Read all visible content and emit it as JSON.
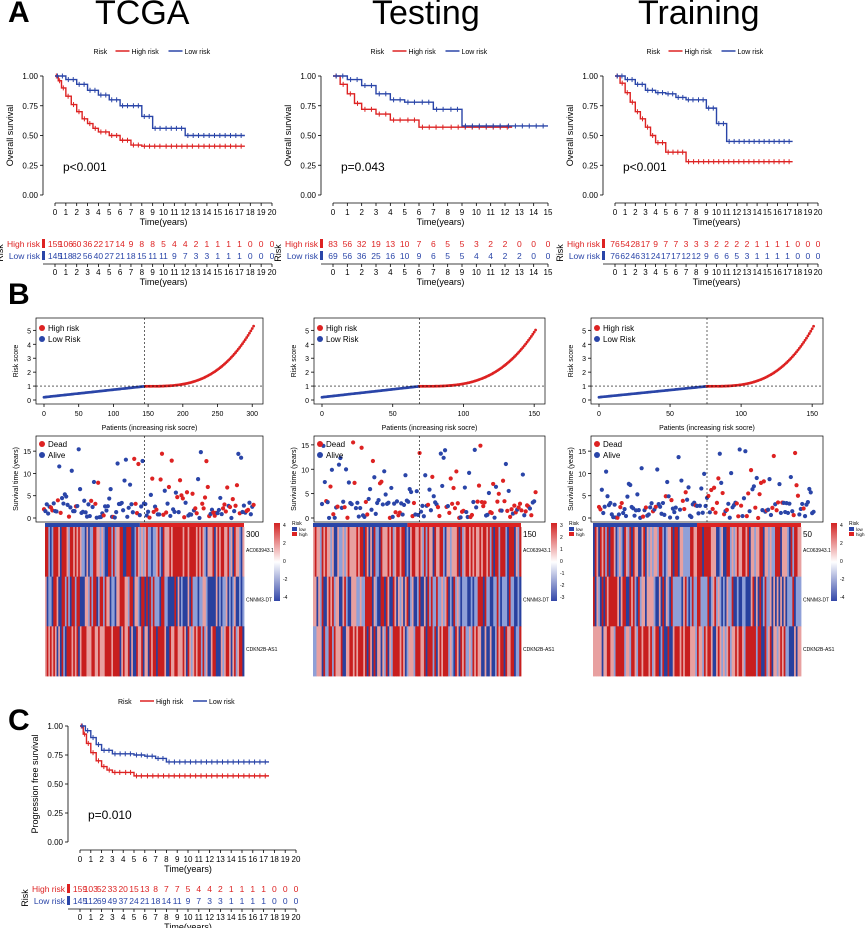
{
  "panel_letters": [
    "A",
    "B",
    "C"
  ],
  "cohorts": [
    "TCGA",
    "Testing",
    "Training"
  ],
  "colors": {
    "high": "#dd2222",
    "low": "#2a45a8",
    "dead": "#dd2222",
    "alive": "#2a45a8",
    "hm_hi": "#d22222",
    "hm_lo": "#3347a8"
  },
  "legend": {
    "risk_label": "Risk",
    "high": "High risk",
    "low": "Low risk"
  },
  "score_legend": {
    "high": "High risk",
    "low": "Low Risk"
  },
  "status_legend": {
    "dead": "Dead",
    "alive": "Alive"
  },
  "axis": {
    "time_label": "Time(years)",
    "os_label": "Overall survival",
    "pfs_label": "Progression free survival",
    "risk_table_label": "Risk",
    "risk_score_label": "Risk score",
    "survival_time_label": "Survival time (years)",
    "patients_label": "Patients (increasing risk socre)"
  },
  "genes": [
    "AC063943.1",
    "CNNM3-DT",
    "CDKN2B-AS1"
  ],
  "heat_legend": {
    "title": "Risk",
    "high": "high",
    "low": "low"
  },
  "chart_data": [
    {
      "id": "A-TCGA",
      "type": "line",
      "title": "TCGA",
      "xlim": [
        0,
        20
      ],
      "ylim": [
        0,
        1
      ],
      "xticks": [
        0,
        1,
        2,
        3,
        4,
        5,
        6,
        7,
        8,
        9,
        10,
        11,
        12,
        13,
        14,
        15,
        16,
        17,
        18,
        19,
        20
      ],
      "yticks": [
        "0.00",
        "0.25",
        "0.50",
        "0.75",
        "1.00"
      ],
      "pvalue": "p<0.001",
      "series": [
        {
          "name": "High risk",
          "x": [
            0,
            0.3,
            0.6,
            1,
            1.5,
            2,
            2.5,
            3,
            3.5,
            4,
            5,
            6,
            7,
            8,
            10,
            13,
            17.5
          ],
          "y": [
            1,
            0.96,
            0.9,
            0.83,
            0.76,
            0.7,
            0.64,
            0.6,
            0.56,
            0.53,
            0.5,
            0.46,
            0.42,
            0.41,
            0.41,
            0.41,
            0.41
          ]
        },
        {
          "name": "Low risk",
          "x": [
            0,
            1,
            2,
            3,
            4,
            5,
            6,
            7,
            8,
            9,
            10,
            12,
            17.5
          ],
          "y": [
            1,
            0.97,
            0.93,
            0.88,
            0.84,
            0.8,
            0.75,
            0.75,
            0.66,
            0.56,
            0.56,
            0.5,
            0.5
          ]
        }
      ],
      "risk_table": {
        "high": [
          "159",
          "106",
          "60",
          "36",
          "22",
          "17",
          "14",
          "9",
          "8",
          "8",
          "5",
          "4",
          "4",
          "2",
          "1",
          "1",
          "1",
          "1",
          "0",
          "0",
          "0"
        ],
        "low": [
          "145",
          "118",
          "82",
          "56",
          "40",
          "27",
          "21",
          "18",
          "15",
          "11",
          "11",
          "9",
          "7",
          "3",
          "3",
          "1",
          "1",
          "1",
          "0",
          "0",
          "0"
        ]
      }
    },
    {
      "id": "A-Testing",
      "type": "line",
      "title": "Testing",
      "xlim": [
        0,
        15
      ],
      "ylim": [
        0,
        1
      ],
      "xticks": [
        0,
        1,
        2,
        3,
        4,
        5,
        6,
        7,
        8,
        9,
        10,
        11,
        12,
        13,
        14,
        15
      ],
      "yticks": [
        "0.00",
        "0.25",
        "0.50",
        "0.75",
        "1.00"
      ],
      "pvalue": "p=0.043",
      "series": [
        {
          "name": "High risk",
          "x": [
            0,
            0.5,
            1,
            1.5,
            2,
            3,
            4,
            5,
            6,
            8,
            12.5
          ],
          "y": [
            1,
            0.93,
            0.85,
            0.77,
            0.72,
            0.68,
            0.63,
            0.63,
            0.57,
            0.57,
            0.57
          ]
        },
        {
          "name": "Low risk",
          "x": [
            0,
            1,
            2,
            3,
            4,
            5,
            6,
            7,
            8,
            9,
            12,
            15
          ],
          "y": [
            1,
            0.97,
            0.92,
            0.85,
            0.8,
            0.78,
            0.78,
            0.72,
            0.72,
            0.58,
            0.58,
            0.58
          ]
        }
      ],
      "risk_table": {
        "high": [
          "83",
          "56",
          "32",
          "19",
          "13",
          "10",
          "7",
          "6",
          "5",
          "5",
          "3",
          "2",
          "2",
          "0",
          "0",
          "0"
        ],
        "low": [
          "69",
          "56",
          "36",
          "25",
          "16",
          "10",
          "9",
          "6",
          "5",
          "5",
          "4",
          "4",
          "2",
          "2",
          "0",
          "0"
        ]
      }
    },
    {
      "id": "A-Training",
      "type": "line",
      "title": "Training",
      "xlim": [
        0,
        20
      ],
      "ylim": [
        0,
        1
      ],
      "xticks": [
        0,
        1,
        2,
        3,
        4,
        5,
        6,
        7,
        8,
        9,
        10,
        11,
        12,
        13,
        14,
        15,
        16,
        17,
        18,
        19,
        20
      ],
      "yticks": [
        "0.00",
        "0.25",
        "0.50",
        "0.75",
        "1.00"
      ],
      "pvalue": "p<0.001",
      "series": [
        {
          "name": "High risk",
          "x": [
            0,
            0.5,
            1,
            1.5,
            2,
            2.5,
            3,
            3.5,
            4,
            5,
            7,
            17.5
          ],
          "y": [
            1,
            0.94,
            0.86,
            0.78,
            0.7,
            0.64,
            0.57,
            0.5,
            0.44,
            0.36,
            0.28,
            0.28
          ]
        },
        {
          "name": "Low risk",
          "x": [
            0,
            1,
            2,
            3,
            4,
            5,
            6,
            7,
            8,
            9,
            10,
            11,
            17.5
          ],
          "y": [
            1,
            0.97,
            0.93,
            0.88,
            0.86,
            0.85,
            0.82,
            0.8,
            0.8,
            0.73,
            0.6,
            0.45,
            0.45
          ]
        }
      ],
      "risk_table": {
        "high": [
          "76",
          "54",
          "28",
          "17",
          "9",
          "7",
          "7",
          "3",
          "3",
          "3",
          "2",
          "2",
          "2",
          "2",
          "1",
          "1",
          "1",
          "1",
          "0",
          "0",
          "0"
        ],
        "low": [
          "76",
          "62",
          "46",
          "31",
          "24",
          "17",
          "17",
          "12",
          "12",
          "9",
          "6",
          "6",
          "5",
          "3",
          "1",
          "1",
          "1",
          "1",
          "0",
          "0",
          "0"
        ]
      }
    },
    {
      "id": "B-score-TCGA",
      "type": "scatter",
      "n": 304,
      "cut": 145,
      "xticks": [
        0,
        50,
        100,
        150,
        200,
        250,
        300
      ],
      "yticks": [
        0,
        1,
        2,
        3,
        4,
        5
      ],
      "ylim": [
        0,
        5.6
      ],
      "threshold": 1,
      "score_range": [
        0.2,
        5.5
      ]
    },
    {
      "id": "B-score-Testing",
      "type": "scatter",
      "n": 152,
      "cut": 69,
      "xticks": [
        0,
        50,
        100,
        150
      ],
      "yticks": [
        0,
        1,
        2,
        3,
        4,
        5
      ],
      "ylim": [
        0,
        5.6
      ],
      "threshold": 1,
      "score_range": [
        0.2,
        5.2
      ]
    },
    {
      "id": "B-score-Training",
      "type": "scatter",
      "n": 152,
      "cut": 76,
      "xticks": [
        0,
        50,
        100,
        150
      ],
      "yticks": [
        0,
        1,
        2,
        3,
        4,
        5
      ],
      "ylim": [
        0,
        5.6
      ],
      "threshold": 1,
      "score_range": [
        0.2,
        5.5
      ]
    },
    {
      "id": "B-time-TCGA",
      "type": "scatter",
      "n": 304,
      "cut": 145,
      "yticks": [
        0,
        5,
        10,
        15
      ],
      "ylim": [
        0,
        17.5
      ]
    },
    {
      "id": "B-time-Testing",
      "type": "scatter",
      "n": 152,
      "cut": 69,
      "yticks": [
        0,
        5,
        10,
        15
      ],
      "ylim": [
        0,
        16
      ]
    },
    {
      "id": "B-time-Training",
      "type": "scatter",
      "n": 152,
      "cut": 76,
      "yticks": [
        0,
        5,
        10,
        15
      ],
      "ylim": [
        0,
        17.5
      ]
    },
    {
      "id": "B-heat-TCGA",
      "type": "heatmap",
      "rows": [
        "AC063943.1",
        "CNNM3-DT",
        "CDKN2B-AS1"
      ],
      "n": 304,
      "cut": 145,
      "scale_ticks": [
        "4",
        "2",
        "0",
        "-2",
        "-4"
      ],
      "top_label": "300"
    },
    {
      "id": "B-heat-Testing",
      "type": "heatmap",
      "rows": [
        "AC063943.1",
        "CNNM3-DT",
        "CDKN2B-AS1"
      ],
      "n": 152,
      "cut": 69,
      "scale_ticks": [
        "3",
        "2",
        "1",
        "0",
        "-1",
        "-2",
        "-3"
      ],
      "top_label": "150"
    },
    {
      "id": "B-heat-Training",
      "type": "heatmap",
      "rows": [
        "AC063943.1",
        "CNNM3-DT",
        "CDKN2B-AS1"
      ],
      "n": 152,
      "cut": 76,
      "scale_ticks": [
        "4",
        "2",
        "0",
        "-2",
        "-4"
      ],
      "top_label": "50"
    },
    {
      "id": "C-PFS",
      "type": "line",
      "xlim": [
        0,
        20
      ],
      "ylim": [
        0,
        1
      ],
      "xticks": [
        0,
        1,
        2,
        3,
        4,
        5,
        6,
        7,
        8,
        9,
        10,
        11,
        12,
        13,
        14,
        15,
        16,
        17,
        18,
        19,
        20
      ],
      "yticks": [
        "0.00",
        "0.25",
        "0.50",
        "0.75",
        "1.00"
      ],
      "pvalue": "p=0.010",
      "series": [
        {
          "name": "High risk",
          "x": [
            0,
            0.3,
            0.6,
            1,
            1.5,
            2,
            2.5,
            3,
            4,
            5,
            6,
            17.5
          ],
          "y": [
            1,
            0.93,
            0.85,
            0.77,
            0.7,
            0.65,
            0.62,
            0.6,
            0.6,
            0.57,
            0.57,
            0.57
          ]
        },
        {
          "name": "Low risk",
          "x": [
            0,
            0.5,
            1,
            1.5,
            2,
            3,
            5,
            6,
            7,
            8,
            17.5
          ],
          "y": [
            1,
            0.96,
            0.9,
            0.84,
            0.79,
            0.76,
            0.75,
            0.74,
            0.72,
            0.69,
            0.69
          ]
        }
      ],
      "risk_table": {
        "high": [
          "159",
          "103",
          "52",
          "33",
          "20",
          "15",
          "13",
          "8",
          "7",
          "7",
          "5",
          "4",
          "4",
          "2",
          "1",
          "1",
          "1",
          "1",
          "0",
          "0",
          "0"
        ],
        "low": [
          "145",
          "112",
          "69",
          "49",
          "37",
          "24",
          "21",
          "18",
          "14",
          "11",
          "9",
          "7",
          "3",
          "3",
          "1",
          "1",
          "1",
          "1",
          "0",
          "0",
          "0"
        ]
      }
    }
  ]
}
